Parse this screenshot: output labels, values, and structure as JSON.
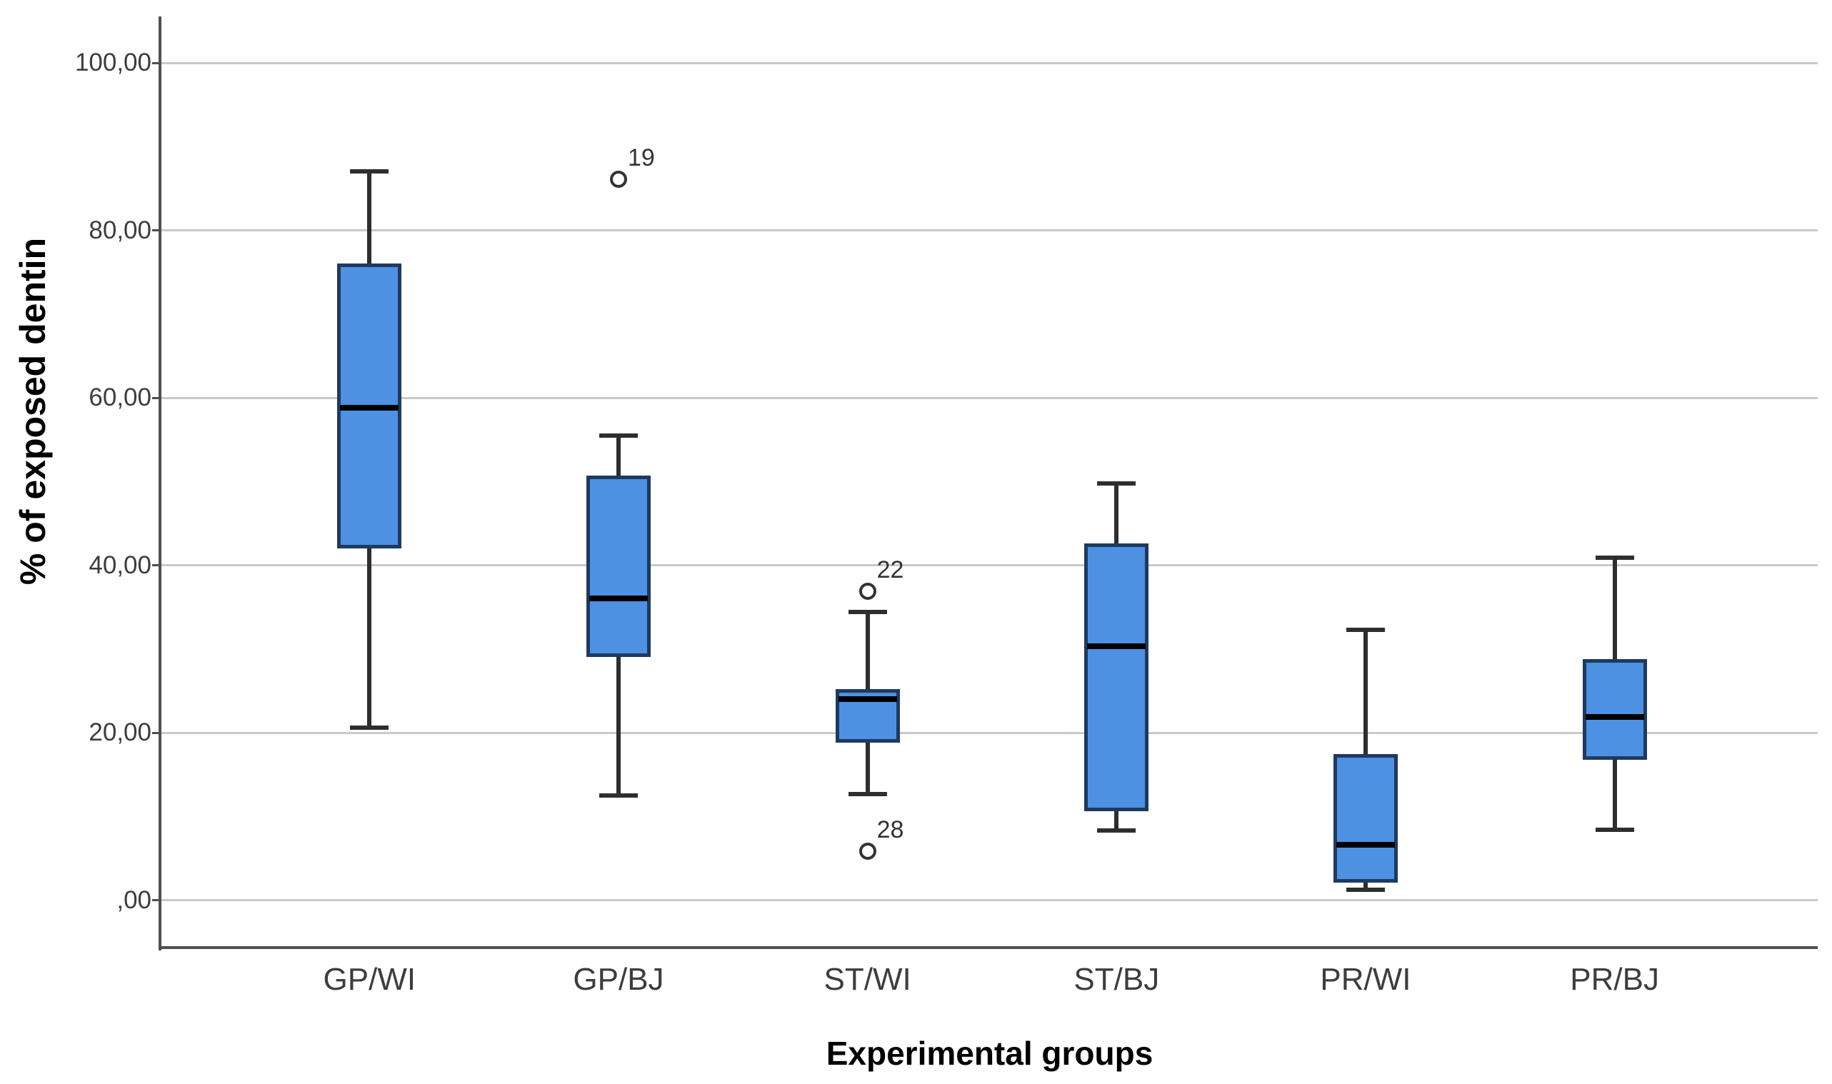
{
  "chart_data": {
    "type": "boxplot",
    "title": "",
    "xlabel": "Experimental groups",
    "ylabel": "% of exposed dentin",
    "categories": [
      "GP/WI",
      "GP/BJ",
      "ST/WI",
      "ST/BJ",
      "PR/WI",
      "PR/BJ"
    ],
    "y_axis": {
      "tick_values": [
        0,
        20,
        40,
        60,
        80,
        100
      ],
      "tick_labels": [
        ",00",
        "20,00",
        "40,00",
        "60,00",
        "80,00",
        "100,00"
      ],
      "range_min": -5.7,
      "range_max": 105.5,
      "grid": true,
      "legend_position": "none"
    },
    "series": [
      {
        "category": "GP/WI",
        "whisker_low": 20.6,
        "q1": 42.0,
        "median": 58.8,
        "q3": 76.0,
        "whisker_high": 87.0,
        "outliers": []
      },
      {
        "category": "GP/BJ",
        "whisker_low": 12.5,
        "q1": 29.0,
        "median": 36.0,
        "q3": 50.7,
        "whisker_high": 55.5,
        "outliers": [
          {
            "value": 86.1,
            "label": "19"
          }
        ]
      },
      {
        "category": "ST/WI",
        "whisker_low": 12.7,
        "q1": 18.8,
        "median": 24.0,
        "q3": 25.2,
        "whisker_high": 34.4,
        "outliers": [
          {
            "value": 36.9,
            "label": "22"
          },
          {
            "value": 5.8,
            "label": "28"
          }
        ]
      },
      {
        "category": "ST/BJ",
        "whisker_low": 8.3,
        "q1": 10.6,
        "median": 30.3,
        "q3": 42.6,
        "whisker_high": 49.8,
        "outliers": []
      },
      {
        "category": "PR/WI",
        "whisker_low": 1.2,
        "q1": 2.1,
        "median": 6.6,
        "q3": 17.4,
        "whisker_high": 32.3,
        "outliers": []
      },
      {
        "category": "PR/BJ",
        "whisker_low": 8.4,
        "q1": 16.8,
        "median": 21.9,
        "q3": 28.8,
        "whisker_high": 40.9,
        "outliers": []
      }
    ]
  },
  "colors": {
    "background": "#ffffff",
    "box_fill": "#4e90e2",
    "box_border": "#1e3a5f",
    "median": "#000000",
    "whisker": "#2e2e2e",
    "gridline": "#c9c9c9",
    "axis": "#4f4f4f",
    "tick_text": "#3d3d3d",
    "title_text": "#000000",
    "outlier": "#333333"
  }
}
